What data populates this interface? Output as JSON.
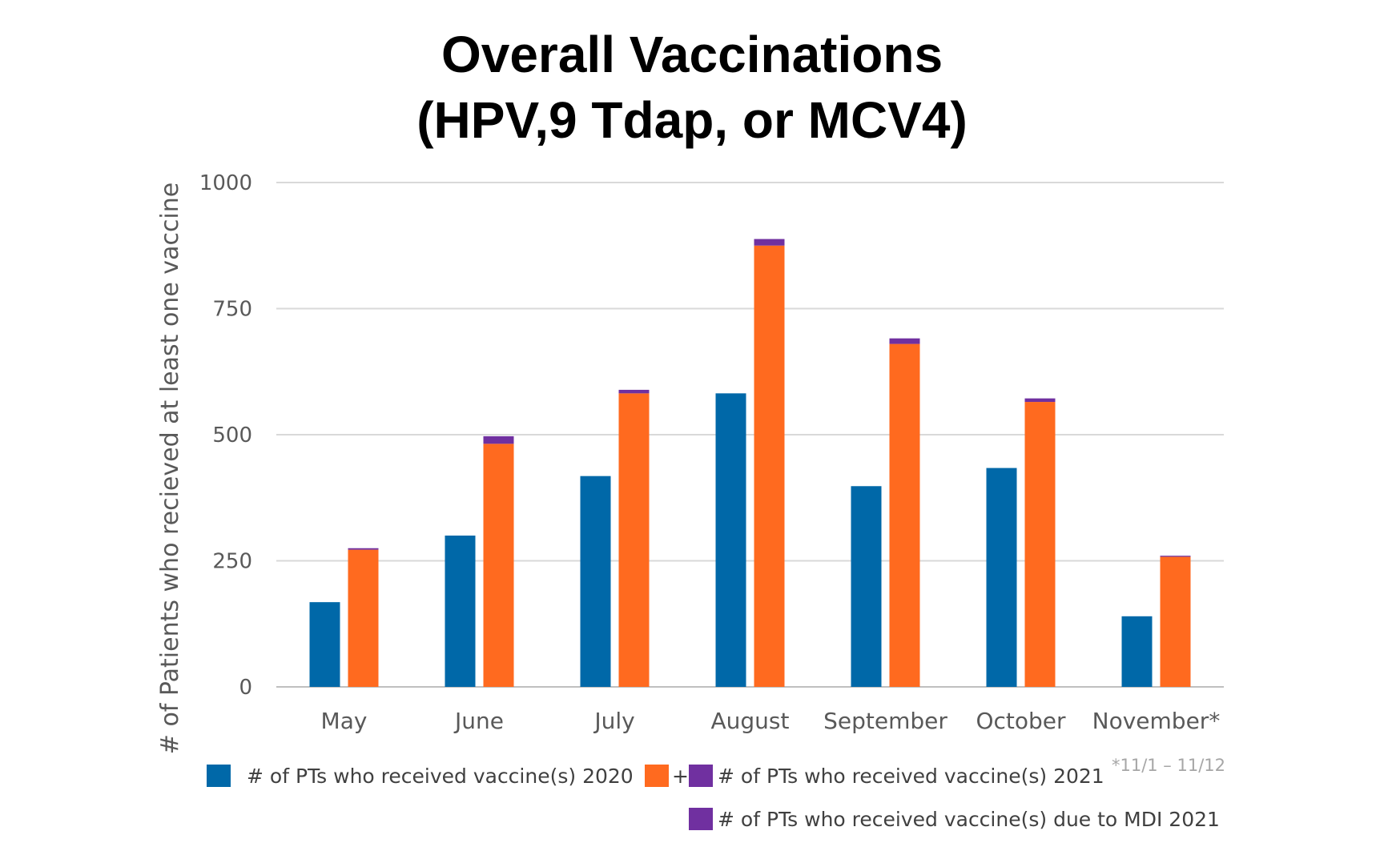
{
  "chart_data": {
    "type": "bar",
    "title": [
      "Overall Vaccinations",
      "(HPV,9 Tdap, or MCV4)"
    ],
    "ylabel": "# of Patients who recieved at least one vaccine",
    "xlabel": "",
    "ylim": [
      0,
      1000
    ],
    "yticks": [
      "0",
      "250",
      "500",
      "750",
      "1000"
    ],
    "categories": [
      "May",
      "June",
      "July",
      "August",
      "September",
      "October",
      "November*"
    ],
    "grid": true,
    "legend_position": "bottom",
    "series": [
      {
        "name": "# of PTs who received vaccine(s) 2020",
        "color": "#0068a8",
        "stack": "2020",
        "values": [
          168,
          300,
          418,
          582,
          398,
          434,
          140
        ]
      },
      {
        "name": "# of PTs who received vaccine(s) 2021",
        "color": "#ff6a1f",
        "stack": "2021",
        "values": [
          272,
          482,
          582,
          875,
          680,
          565,
          258
        ]
      },
      {
        "name": "# of PTs who received vaccine(s) due to MDI 2021",
        "color": "#7030a0",
        "stack": "2021",
        "values": [
          3,
          15,
          7,
          13,
          11,
          7,
          2
        ]
      }
    ],
    "legend_joiner": "+",
    "footnote": "*11/1 – 11/12"
  }
}
